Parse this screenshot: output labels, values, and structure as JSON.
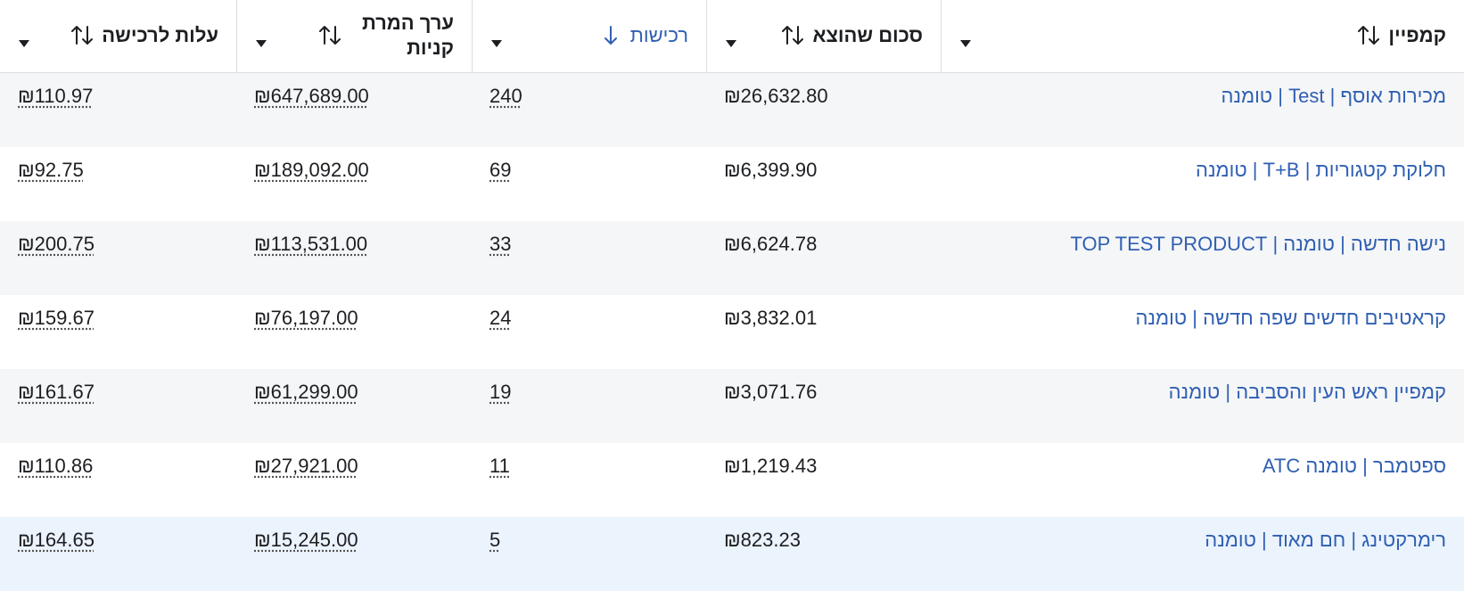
{
  "table": {
    "columns": [
      "קמפיין",
      "סכום שהוצא",
      "רכישות",
      "ערך המרת קניות",
      "עלות לרכישה"
    ],
    "rows": [
      [
        "מכירות אוסף | Test | טומנה",
        "₪26,632.80",
        "240",
        "₪647,689.00",
        "₪110.97"
      ],
      [
        "חלוקת קטגוריות | T+B | טומנה",
        "₪6,399.90",
        "69",
        "₪189,092.00",
        "₪92.75"
      ],
      [
        "נישה חדשה | טומנה | TOP TEST PRODUCT",
        "₪6,624.78",
        "33",
        "₪113,531.00",
        "₪200.75"
      ],
      [
        "קראטיבים חדשים שפה חדשה | טומנה",
        "₪3,832.01",
        "24",
        "₪76,197.00",
        "₪159.67"
      ],
      [
        "קמפיין ראש העין והסביבה | טומנה",
        "₪3,071.76",
        "19",
        "₪61,299.00",
        "₪161.67"
      ],
      [
        "ספטמבר | טומנה ATC",
        "₪1,219.43",
        "11",
        "₪27,921.00",
        "₪110.86"
      ],
      [
        "רימרקטינג | חם מאוד | טומנה",
        "₪823.23",
        "5",
        "₪15,245.00",
        "₪164.65"
      ]
    ]
  }
}
